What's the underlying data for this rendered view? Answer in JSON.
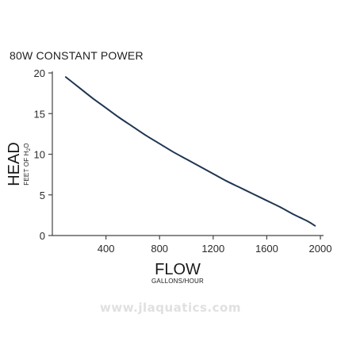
{
  "chart_data": {
    "type": "line",
    "title": "80W CONSTANT POWER",
    "xlabel": "FLOW",
    "xlabel_sub": "GALLONS/HOUR",
    "ylabel": "HEAD",
    "ylabel_sub_prefix": "FEET OF H",
    "ylabel_sub_subscript": "2",
    "ylabel_sub_suffix": "O",
    "xlim": [
      0,
      2000
    ],
    "ylim": [
      0,
      20
    ],
    "x_ticks": [
      400,
      800,
      1200,
      1600,
      2000
    ],
    "x_tick_labels": [
      "400",
      "800",
      "1200",
      "1600",
      "2000"
    ],
    "y_ticks": [
      0,
      5,
      10,
      15,
      20
    ],
    "y_tick_labels": [
      "0",
      "5",
      "10",
      "15",
      "20"
    ],
    "grid": false,
    "line_color": "#1f3552",
    "series": [
      {
        "x": [
          100,
          200,
          300,
          400,
          500,
          600,
          700,
          800,
          900,
          1000,
          1100,
          1200,
          1300,
          1400,
          1500,
          1600,
          1700,
          1800,
          1900,
          1960
        ],
        "y": [
          19.5,
          18.2,
          16.9,
          15.7,
          14.5,
          13.4,
          12.3,
          11.3,
          10.3,
          9.4,
          8.5,
          7.6,
          6.7,
          5.9,
          5.1,
          4.3,
          3.5,
          2.6,
          1.8,
          1.2
        ]
      }
    ]
  },
  "watermark": "www.jlaquatics.com"
}
